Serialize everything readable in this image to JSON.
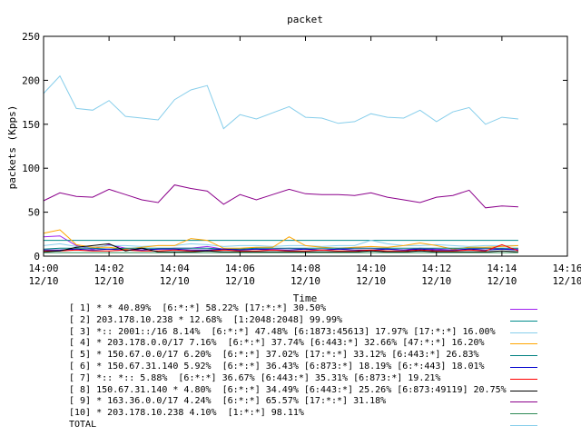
{
  "chart_data": {
    "type": "line",
    "title": "packet",
    "xlabel": "Time",
    "ylabel": "packets (Kpps)",
    "ylim": [
      0,
      250
    ],
    "yticks": [
      0,
      50,
      100,
      150,
      200,
      250
    ],
    "xticks": [
      {
        "time": "14:00",
        "date": "12/10"
      },
      {
        "time": "14:02",
        "date": "12/10"
      },
      {
        "time": "14:04",
        "date": "12/10"
      },
      {
        "time": "14:06",
        "date": "12/10"
      },
      {
        "time": "14:08",
        "date": "12/10"
      },
      {
        "time": "14:10",
        "date": "12/10"
      },
      {
        "time": "14:12",
        "date": "12/10"
      },
      {
        "time": "14:14",
        "date": "12/10"
      },
      {
        "time": "14:16",
        "date": "12/10"
      }
    ],
    "xlim": [
      "14:00",
      "14:16"
    ],
    "x": [
      "14:00:00",
      "14:00:30",
      "14:01:00",
      "14:01:30",
      "14:02:00",
      "14:02:30",
      "14:03:00",
      "14:03:30",
      "14:04:00",
      "14:04:30",
      "14:05:00",
      "14:05:30",
      "14:06:00",
      "14:06:30",
      "14:07:00",
      "14:07:30",
      "14:08:00",
      "14:08:30",
      "14:09:00",
      "14:09:30",
      "14:10:00",
      "14:10:30",
      "14:11:00",
      "14:11:30",
      "14:12:00",
      "14:12:30",
      "14:13:00",
      "14:13:30",
      "14:14:00",
      "14:14:30"
    ],
    "series": [
      {
        "name": "[ 1] * * 40.89%  [6:*:*] 58.22% [17:*:*] 30.50%",
        "color": "#a020f0",
        "values": [
          22,
          23,
          12,
          8,
          13,
          9,
          7,
          8,
          9,
          9,
          11,
          8,
          7,
          8,
          8,
          9,
          8,
          7,
          8,
          9,
          9,
          8,
          7,
          9,
          8,
          7,
          8,
          9,
          8,
          8
        ]
      },
      {
        "name": "[ 2] 203.178.10.238 * 12.68%  [1:2048:2048] 99.99%",
        "color": "#008b8b",
        "values": [
          18,
          18,
          18,
          18,
          18,
          18,
          18,
          18,
          18,
          18,
          18,
          18,
          18,
          18,
          18,
          18,
          18,
          18,
          18,
          18,
          18,
          18,
          18,
          18,
          18,
          18,
          18,
          18,
          18,
          18
        ]
      },
      {
        "name": "[ 3] *:: 2001::/16 8.14%  [6:*:*] 47.48% [6:1873:45613] 17.97% [17:*:*] 16.00%",
        "color": "#87ceeb",
        "values": [
          12,
          14,
          11,
          10,
          12,
          12,
          11,
          12,
          12,
          14,
          13,
          11,
          12,
          12,
          11,
          12,
          12,
          11,
          12,
          12,
          18,
          14,
          12,
          12,
          13,
          12,
          11,
          12,
          12,
          12
        ]
      },
      {
        "name": "[ 4] * 203.178.0.0/17 7.16%  [6:*:*] 37.74% [6:443:*] 32.66% [47:*:*] 16.20%",
        "color": "#ffa500",
        "values": [
          26,
          30,
          13,
          10,
          10,
          8,
          10,
          12,
          12,
          20,
          18,
          9,
          9,
          10,
          10,
          22,
          12,
          10,
          9,
          10,
          11,
          10,
          12,
          15,
          12,
          8,
          10,
          10,
          11,
          12
        ]
      },
      {
        "name": "[ 5] * 150.67.0.0/17 6.20%  [6:*:*] 37.02% [17:*:*] 33.12% [6:443:*] 26.83%",
        "color": "#008080",
        "values": [
          8,
          9,
          9,
          9,
          8,
          9,
          9,
          9,
          9,
          9,
          9,
          8,
          8,
          9,
          9,
          9,
          9,
          9,
          9,
          9,
          9,
          9,
          9,
          9,
          9,
          9,
          9,
          9,
          9,
          9
        ]
      },
      {
        "name": "[ 6] * 150.67.31.140 5.92%  [6:*:*] 36.43% [6:873:*] 18.19% [6:*:443] 18.01%",
        "color": "#0000cd",
        "values": [
          7,
          7,
          8,
          7,
          8,
          7,
          7,
          8,
          8,
          7,
          7,
          8,
          7,
          8,
          7,
          7,
          8,
          7,
          8,
          7,
          7,
          8,
          7,
          8,
          7,
          7,
          8,
          7,
          8,
          7
        ]
      },
      {
        "name": "[ 7] *:: *:: 5.88%  [6:*:*] 36.67% [6:443:*] 35.31% [6:873:*] 19.21%",
        "color": "#ff0000",
        "values": [
          6,
          6,
          7,
          6,
          6,
          7,
          6,
          6,
          7,
          6,
          6,
          7,
          6,
          6,
          7,
          6,
          6,
          7,
          6,
          6,
          7,
          6,
          6,
          7,
          6,
          6,
          7,
          6,
          13,
          6
        ]
      },
      {
        "name": "[ 8] 150.67.31.140 * 4.80%  [6:*:*] 34.49% [6:443:*] 25.26% [6:873:49119] 20.75%",
        "color": "#000000",
        "values": [
          5,
          6,
          10,
          12,
          14,
          6,
          9,
          5,
          5,
          5,
          6,
          5,
          5,
          5,
          5,
          5,
          5,
          5,
          5,
          5,
          6,
          5,
          5,
          6,
          5,
          5,
          5,
          5,
          6,
          5
        ]
      },
      {
        "name": "[ 9] * 163.36.0.0/17 4.24%  [6:*:*] 65.57% [17:*:*] 31.18%",
        "color": "#8b008b",
        "values": [
          63,
          72,
          68,
          67,
          76,
          70,
          64,
          61,
          81,
          77,
          74,
          59,
          70,
          64,
          70,
          76,
          71,
          70,
          70,
          69,
          72,
          67,
          64,
          61,
          67,
          69,
          75,
          55,
          57,
          56
        ]
      },
      {
        "name": "[10] * 203.178.10.238 4.10%  [1:*:*] 98.11%",
        "color": "#2e8b57",
        "values": [
          4,
          4,
          4,
          4,
          4,
          4,
          4,
          4,
          4,
          4,
          4,
          4,
          4,
          4,
          4,
          4,
          4,
          4,
          4,
          4,
          4,
          4,
          4,
          4,
          4,
          4,
          4,
          4,
          4,
          4
        ]
      },
      {
        "name": "TOTAL",
        "color": "#87ceeb",
        "values": [
          185,
          205,
          168,
          166,
          177,
          159,
          157,
          155,
          178,
          189,
          194,
          145,
          161,
          156,
          163,
          170,
          158,
          157,
          151,
          153,
          162,
          158,
          157,
          166,
          153,
          164,
          169,
          150,
          158,
          156
        ]
      }
    ]
  }
}
